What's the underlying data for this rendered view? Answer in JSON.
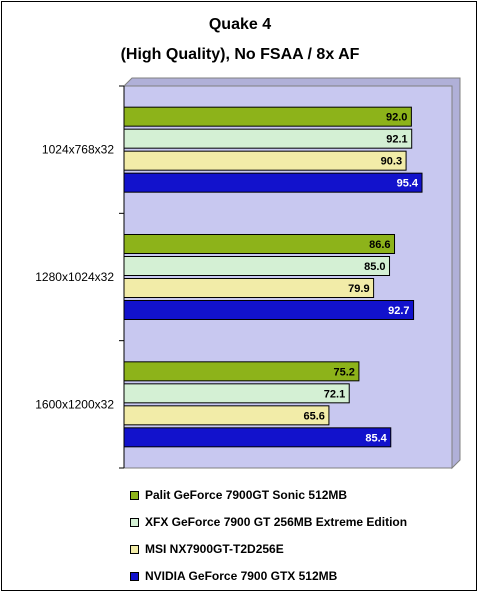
{
  "chart_data": {
    "type": "bar",
    "orientation": "horizontal",
    "title": "Quake 4",
    "subtitle": "(High Quality), No FSAA / 8x AF",
    "categories": [
      "1024x768x32",
      "1280x1024x32",
      "1600x1200x32"
    ],
    "series": [
      {
        "name": "Palit GeForce 7900GT Sonic 512MB",
        "values": [
          92.0,
          86.6,
          75.2
        ],
        "color": "#8db31a",
        "label_color": "#000000"
      },
      {
        "name": "XFX GeForce 7900 GT 256MB Extreme Edition",
        "values": [
          92.1,
          85.0,
          72.1
        ],
        "color": "#d4f0d4",
        "label_color": "#000000"
      },
      {
        "name": "MSI NX7900GT-T2D256E",
        "values": [
          90.3,
          79.9,
          65.6
        ],
        "color": "#f2eca8",
        "label_color": "#000000"
      },
      {
        "name": "NVIDIA GeForce 7900 GTX 512MB",
        "values": [
          95.4,
          92.7,
          85.4
        ],
        "color": "#1212cc",
        "label_color": "#ffffff"
      }
    ],
    "xlim": [
      0,
      105
    ],
    "plot_background": "#c8c8f0",
    "grid": false,
    "legend_position": "bottom"
  }
}
